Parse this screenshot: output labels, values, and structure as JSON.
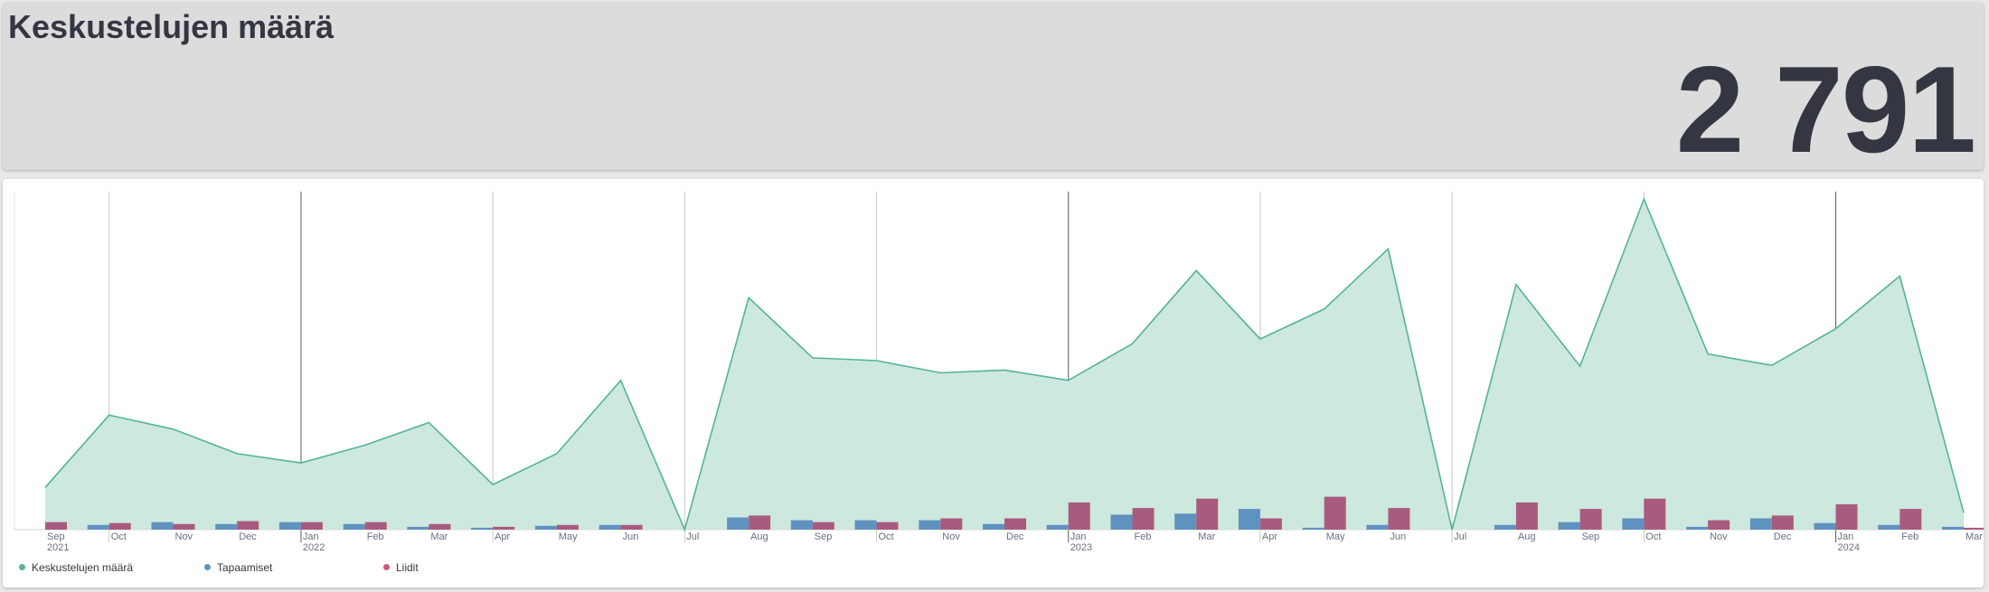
{
  "kpi": {
    "title": "Keskustelujen määrä",
    "value": "2 791"
  },
  "colors": {
    "area_line": "#54b399",
    "area_fill": "#cde8de",
    "bar_tapaamiset": "#6092c0",
    "bar_liidit": "#a85b7e",
    "grid_major": "#5a5a5a",
    "grid_minor": "#c8c8c8"
  },
  "chart_data": {
    "type": "area",
    "x_ticks": [
      {
        "month": "Sep",
        "year": "2021"
      },
      {
        "month": "Oct",
        "year": ""
      },
      {
        "month": "Nov",
        "year": ""
      },
      {
        "month": "Dec",
        "year": ""
      },
      {
        "month": "Jan",
        "year": "2022"
      },
      {
        "month": "Feb",
        "year": ""
      },
      {
        "month": "Mar",
        "year": ""
      },
      {
        "month": "Apr",
        "year": ""
      },
      {
        "month": "May",
        "year": ""
      },
      {
        "month": "Jun",
        "year": ""
      },
      {
        "month": "Jul",
        "year": ""
      },
      {
        "month": "Aug",
        "year": ""
      },
      {
        "month": "Sep",
        "year": ""
      },
      {
        "month": "Oct",
        "year": ""
      },
      {
        "month": "Nov",
        "year": ""
      },
      {
        "month": "Dec",
        "year": ""
      },
      {
        "month": "Jan",
        "year": "2023"
      },
      {
        "month": "Feb",
        "year": ""
      },
      {
        "month": "Mar",
        "year": ""
      },
      {
        "month": "Apr",
        "year": ""
      },
      {
        "month": "May",
        "year": ""
      },
      {
        "month": "Jun",
        "year": ""
      },
      {
        "month": "Jul",
        "year": ""
      },
      {
        "month": "Aug",
        "year": ""
      },
      {
        "month": "Sep",
        "year": ""
      },
      {
        "month": "Oct",
        "year": ""
      },
      {
        "month": "Nov",
        "year": ""
      },
      {
        "month": "Dec",
        "year": ""
      },
      {
        "month": "Jan",
        "year": "2024"
      },
      {
        "month": "Feb",
        "year": ""
      },
      {
        "month": "Mar",
        "year": ""
      }
    ],
    "ylim": [
      0,
      280
    ],
    "series": [
      {
        "name": "Keskustelujen määrä",
        "kind": "area",
        "values": [
          45,
          122,
          107,
          81,
          71,
          90,
          114,
          48,
          81,
          159,
          0,
          247,
          183,
          180,
          167,
          170,
          159,
          198,
          276,
          203,
          235,
          299,
          0,
          261,
          174,
          352,
          187,
          175,
          214,
          270,
          18
        ]
      },
      {
        "name": "Tapaamiset",
        "kind": "bar",
        "values": [
          0,
          5,
          8,
          6,
          8,
          6,
          3,
          2,
          4,
          5,
          0,
          13,
          10,
          10,
          10,
          6,
          5,
          16,
          17,
          22,
          2,
          5,
          0,
          5,
          8,
          12,
          3,
          12,
          7,
          5,
          3
        ]
      },
      {
        "name": "Liidit",
        "kind": "bar",
        "values": [
          8,
          7,
          6,
          9,
          8,
          8,
          6,
          3,
          5,
          5,
          0,
          15,
          8,
          8,
          12,
          12,
          29,
          23,
          33,
          12,
          35,
          23,
          0,
          29,
          22,
          33,
          10,
          15,
          27,
          22,
          2
        ]
      }
    ],
    "grid": true,
    "legend_position": "bottom-left"
  }
}
